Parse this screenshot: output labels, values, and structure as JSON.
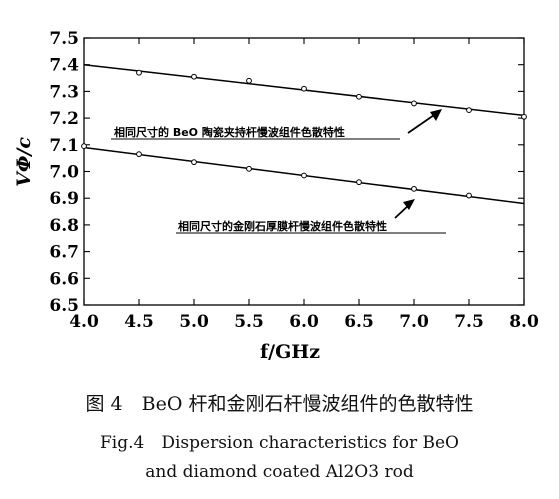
{
  "chart_data": {
    "type": "line",
    "xlabel": "f/GHz",
    "ylabel": "VΦ/c",
    "xlim": [
      4.0,
      8.0
    ],
    "ylim": [
      6.5,
      7.5
    ],
    "x_ticks": [
      "4.0",
      "4.5",
      "5.0",
      "5.5",
      "6.0",
      "6.5",
      "7.0",
      "7.5",
      "8.0"
    ],
    "y_ticks": [
      "6.5",
      "6.6",
      "6.7",
      "6.8",
      "6.9",
      "7.0",
      "7.1",
      "7.2",
      "7.3",
      "7.4",
      "7.5"
    ],
    "grid": false,
    "series": [
      {
        "label": "相同尺寸的 BeO 陶瓷夹持杆慢波组件色散特性",
        "line": [
          [
            4.0,
            7.4
          ],
          [
            8.0,
            7.21
          ]
        ],
        "points": [
          [
            4.5,
            7.37
          ],
          [
            5.0,
            7.355
          ],
          [
            5.5,
            7.34
          ],
          [
            6.0,
            7.31
          ],
          [
            6.5,
            7.28
          ],
          [
            7.0,
            7.255
          ],
          [
            7.5,
            7.23
          ],
          [
            8.0,
            7.205
          ]
        ]
      },
      {
        "label": "相同尺寸的金刚石厚膜杆慢波组件色散特性",
        "line": [
          [
            4.0,
            7.09
          ],
          [
            8.0,
            6.88
          ]
        ],
        "points": [
          [
            4.0,
            7.095
          ],
          [
            4.5,
            7.065
          ],
          [
            5.0,
            7.035
          ],
          [
            5.5,
            7.01
          ],
          [
            6.0,
            6.985
          ],
          [
            6.5,
            6.96
          ],
          [
            7.0,
            6.935
          ],
          [
            7.5,
            6.91
          ]
        ]
      }
    ]
  },
  "caption": {
    "cn": "图 4　BeO 杆和金刚石杆慢波组件的色散特性",
    "en_line1": "Fig.4　Dispersion characteristics for BeO",
    "en_line2": "and diamond coated Al2O3 rod"
  }
}
